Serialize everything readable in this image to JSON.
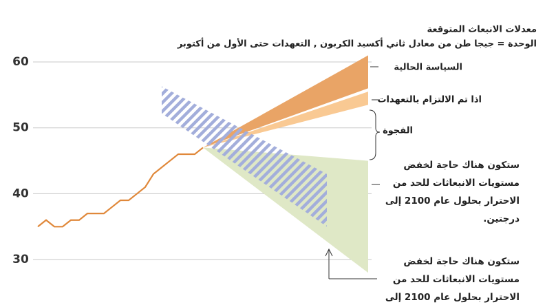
{
  "chart_data": {
    "type": "line",
    "title": "معدلات الانبعاث المتوقعة",
    "subtitle": "الوحدة = جيجا طن من معادل ثاني أكسيد الكربون , التعهدات حتى الأول من أكتوبر",
    "categories": [
      null,
      null,
      null,
      null,
      null,
      null,
      null,
      null,
      null,
      null,
      null,
      null,
      null,
      null,
      null,
      null,
      null,
      null,
      null,
      null,
      null,
      null,
      null,
      null,
      null,
      null,
      null,
      null,
      null,
      null,
      null,
      null,
      null,
      null,
      null,
      null,
      null,
      null,
      null,
      null,
      null
    ],
    "ylim": [
      25,
      65
    ],
    "yticks": [
      30,
      40,
      50,
      60
    ],
    "grid": true,
    "series": [
      {
        "name": null,
        "color": "#e0883a",
        "values": [
          35,
          36,
          35,
          35,
          36,
          36,
          37,
          37,
          37,
          38,
          39,
          39,
          40,
          41,
          43,
          44,
          45,
          46,
          46,
          46,
          47,
          null,
          null,
          null,
          null,
          null,
          null,
          null,
          null,
          null,
          null,
          null,
          null,
          null,
          null,
          null,
          null,
          null,
          null,
          null,
          null
        ]
      },
      {
        "name": [
          "السياسة الحالية"
        ],
        "color": "#e9a466",
        "band": true,
        "lower": [
          null,
          null,
          null,
          null,
          null,
          null,
          null,
          null,
          null,
          null,
          null,
          null,
          null,
          null,
          null,
          null,
          null,
          null,
          null,
          null,
          47,
          null,
          null,
          null,
          null,
          null,
          null,
          null,
          null,
          null,
          null,
          null,
          null,
          null,
          null,
          null,
          null,
          null,
          null,
          null,
          56
        ],
        "upper": [
          null,
          null,
          null,
          null,
          null,
          null,
          null,
          null,
          null,
          null,
          null,
          null,
          null,
          null,
          null,
          null,
          null,
          null,
          null,
          null,
          47,
          null,
          null,
          null,
          null,
          null,
          null,
          null,
          null,
          null,
          null,
          null,
          null,
          null,
          null,
          null,
          null,
          null,
          null,
          null,
          61
        ]
      },
      {
        "name": [
          "اذا تم الالتزام بالتعهدات"
        ],
        "color": "#f9c993",
        "band": true,
        "lower": [
          null,
          null,
          null,
          null,
          null,
          null,
          null,
          null,
          null,
          null,
          null,
          null,
          null,
          null,
          null,
          null,
          null,
          null,
          null,
          null,
          47,
          null,
          null,
          null,
          null,
          null,
          null,
          null,
          null,
          null,
          null,
          null,
          null,
          null,
          null,
          null,
          null,
          null,
          null,
          null,
          53.5
        ],
        "upper": [
          null,
          null,
          null,
          null,
          null,
          null,
          null,
          null,
          null,
          null,
          null,
          null,
          null,
          null,
          null,
          null,
          null,
          null,
          null,
          null,
          47,
          null,
          null,
          null,
          null,
          null,
          null,
          null,
          null,
          null,
          null,
          null,
          null,
          null,
          null,
          null,
          null,
          null,
          null,
          null,
          55.5
        ]
      },
      {
        "name": [
          "ستكون هناك حاجة لخفض",
          "مستويات الانبعاثات للحد من",
          "الاحترار بحلول عام 2100 إلى",
          "درجتين."
        ],
        "color": "#dfe8c6",
        "band": true,
        "lower": [
          null,
          null,
          null,
          null,
          null,
          null,
          null,
          null,
          null,
          null,
          null,
          null,
          null,
          null,
          null,
          null,
          null,
          null,
          null,
          null,
          47,
          null,
          null,
          null,
          null,
          null,
          null,
          null,
          null,
          null,
          null,
          null,
          null,
          null,
          null,
          null,
          null,
          null,
          null,
          null,
          28
        ],
        "upper": [
          null,
          null,
          null,
          null,
          null,
          null,
          null,
          null,
          null,
          null,
          null,
          null,
          null,
          null,
          null,
          null,
          null,
          null,
          null,
          null,
          47,
          null,
          null,
          null,
          null,
          null,
          null,
          null,
          null,
          null,
          null,
          null,
          null,
          null,
          null,
          null,
          null,
          null,
          null,
          null,
          45
        ]
      },
      {
        "name": [
          "ستكون هناك حاجة لخفض",
          "مستويات الانبعاثات للحد من",
          "الاحترار  بحلول عام 2100 إلى"
        ],
        "color": "#a3aedb",
        "band": true,
        "hatched": true,
        "lower": [
          null,
          null,
          null,
          null,
          null,
          null,
          null,
          null,
          null,
          null,
          null,
          null,
          null,
          null,
          null,
          52.2,
          null,
          null,
          null,
          null,
          null,
          null,
          null,
          null,
          null,
          null,
          null,
          null,
          null,
          null,
          null,
          null,
          null,
          null,
          null,
          35,
          null,
          null,
          null,
          null,
          null
        ],
        "upper": [
          null,
          null,
          null,
          null,
          null,
          null,
          null,
          null,
          null,
          null,
          null,
          null,
          null,
          null,
          null,
          56.3,
          null,
          null,
          null,
          null,
          null,
          null,
          null,
          null,
          null,
          null,
          null,
          null,
          null,
          null,
          null,
          null,
          null,
          null,
          null,
          43,
          null,
          null,
          null,
          null,
          null
        ]
      }
    ],
    "annotations": [
      "الفجوة"
    ]
  }
}
